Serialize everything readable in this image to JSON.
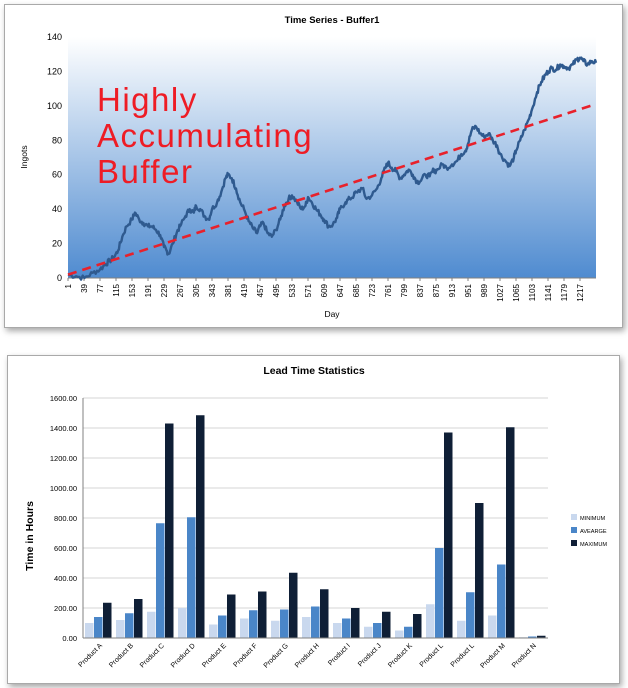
{
  "chart_data": [
    {
      "type": "line",
      "title": "Time Series -  Buffer1",
      "xlabel": "Day",
      "ylabel": "Ingots",
      "ylim": [
        0,
        140
      ],
      "yticks": [
        0,
        20,
        40,
        60,
        80,
        100,
        120,
        140
      ],
      "xticks": [
        "1",
        "39",
        "77",
        "115",
        "153",
        "191",
        "229",
        "267",
        "305",
        "343",
        "381",
        "419",
        "457",
        "495",
        "533",
        "571",
        "609",
        "647",
        "685",
        "723",
        "761",
        "799",
        "837",
        "875",
        "913",
        "951",
        "989",
        "1027",
        "1065",
        "1103",
        "1141",
        "1179",
        "1217"
      ],
      "xlim": [
        1,
        1255
      ],
      "annotation": "Highly\nAccumulating\nBuffer",
      "legend": "none",
      "grid": false,
      "background": "vertical gradient white to blue",
      "series": [
        {
          "style": "solid",
          "color": "#2f5a8f",
          "x": [
            1,
            20,
            40,
            60,
            77,
            90,
            100,
            110,
            120,
            130,
            140,
            153,
            160,
            170,
            180,
            191,
            200,
            210,
            220,
            229,
            235,
            240,
            250,
            260,
            267,
            280,
            290,
            300,
            305,
            315,
            325,
            335,
            343,
            355,
            365,
            375,
            381,
            390,
            400,
            410,
            419,
            430,
            440,
            450,
            457,
            465,
            475,
            485,
            495,
            505,
            515,
            525,
            533,
            545,
            555,
            565,
            571,
            580,
            590,
            600,
            609,
            620,
            630,
            640,
            647,
            660,
            670,
            680,
            685,
            700,
            710,
            723,
            735,
            745,
            755,
            761,
            770,
            780,
            790,
            799,
            810,
            820,
            830,
            837,
            850,
            860,
            870,
            875,
            890,
            900,
            913,
            925,
            935,
            945,
            951,
            960,
            970,
            980,
            989,
            1000,
            1010,
            1020,
            1027,
            1040,
            1050,
            1060,
            1065,
            1075,
            1085,
            1095,
            1103,
            1115,
            1125,
            1135,
            1141,
            1150,
            1160,
            1170,
            1179,
            1190,
            1200,
            1210,
            1217,
            1225,
            1235,
            1245,
            1255
          ],
          "values": [
            2,
            1,
            0,
            3,
            5,
            8,
            10,
            12,
            16,
            24,
            30,
            34,
            38,
            34,
            32,
            30,
            30,
            28,
            25,
            18,
            16,
            14,
            20,
            27,
            30,
            36,
            40,
            38,
            42,
            40,
            36,
            34,
            40,
            44,
            50,
            58,
            60,
            58,
            52,
            44,
            40,
            33,
            29,
            26,
            30,
            32,
            26,
            24,
            28,
            34,
            42,
            46,
            48,
            44,
            40,
            42,
            47,
            44,
            40,
            37,
            34,
            30,
            31,
            35,
            40,
            44,
            46,
            48,
            50,
            52,
            46,
            48,
            52,
            58,
            64,
            67,
            64,
            62,
            58,
            60,
            63,
            60,
            56,
            56,
            60,
            59,
            63,
            62,
            66,
            64,
            66,
            68,
            72,
            74,
            78,
            86,
            88,
            84,
            82,
            84,
            80,
            77,
            72,
            68,
            65,
            70,
            74,
            80,
            86,
            92,
            98,
            108,
            114,
            118,
            120,
            122,
            121,
            124,
            123,
            122,
            124,
            127,
            128,
            126,
            124,
            126,
            125
          ]
        },
        {
          "style": "dashed",
          "color": "#e8212b",
          "x": [
            1,
            1255
          ],
          "values": [
            2,
            101
          ]
        }
      ]
    },
    {
      "type": "bar",
      "title": "Lead Time Statistics",
      "xlabel": "",
      "ylabel": "Time in Hours",
      "ylim": [
        0,
        1600
      ],
      "yticks": [
        "0.00",
        "200.00",
        "400.00",
        "600.00",
        "800.00",
        "1000.00",
        "1200.00",
        "1400.00",
        "1600.00"
      ],
      "categories": [
        "Product A",
        "Product B",
        "Product C",
        "Product D",
        "Product E",
        "Product F",
        "Product G",
        "Product H",
        "Product I",
        "Product J",
        "Product K",
        "Product L",
        "Product L",
        "Product M",
        "Product N"
      ],
      "legend": "right",
      "grid": true,
      "series": [
        {
          "name": "MINIMUM",
          "color": "#c9d8ee",
          "values": [
            100,
            120,
            175,
            200,
            90,
            130,
            115,
            140,
            100,
            75,
            50,
            225,
            115,
            150,
            5
          ]
        },
        {
          "name": "AVEARGE",
          "color": "#4a86c8",
          "values": [
            140,
            165,
            765,
            805,
            150,
            185,
            190,
            210,
            130,
            100,
            75,
            600,
            305,
            490,
            10
          ]
        },
        {
          "name": "MAXIMUM",
          "color": "#0f1f36",
          "values": [
            235,
            260,
            1430,
            1485,
            290,
            310,
            435,
            325,
            200,
            175,
            160,
            1370,
            900,
            1405,
            15
          ]
        }
      ]
    }
  ]
}
